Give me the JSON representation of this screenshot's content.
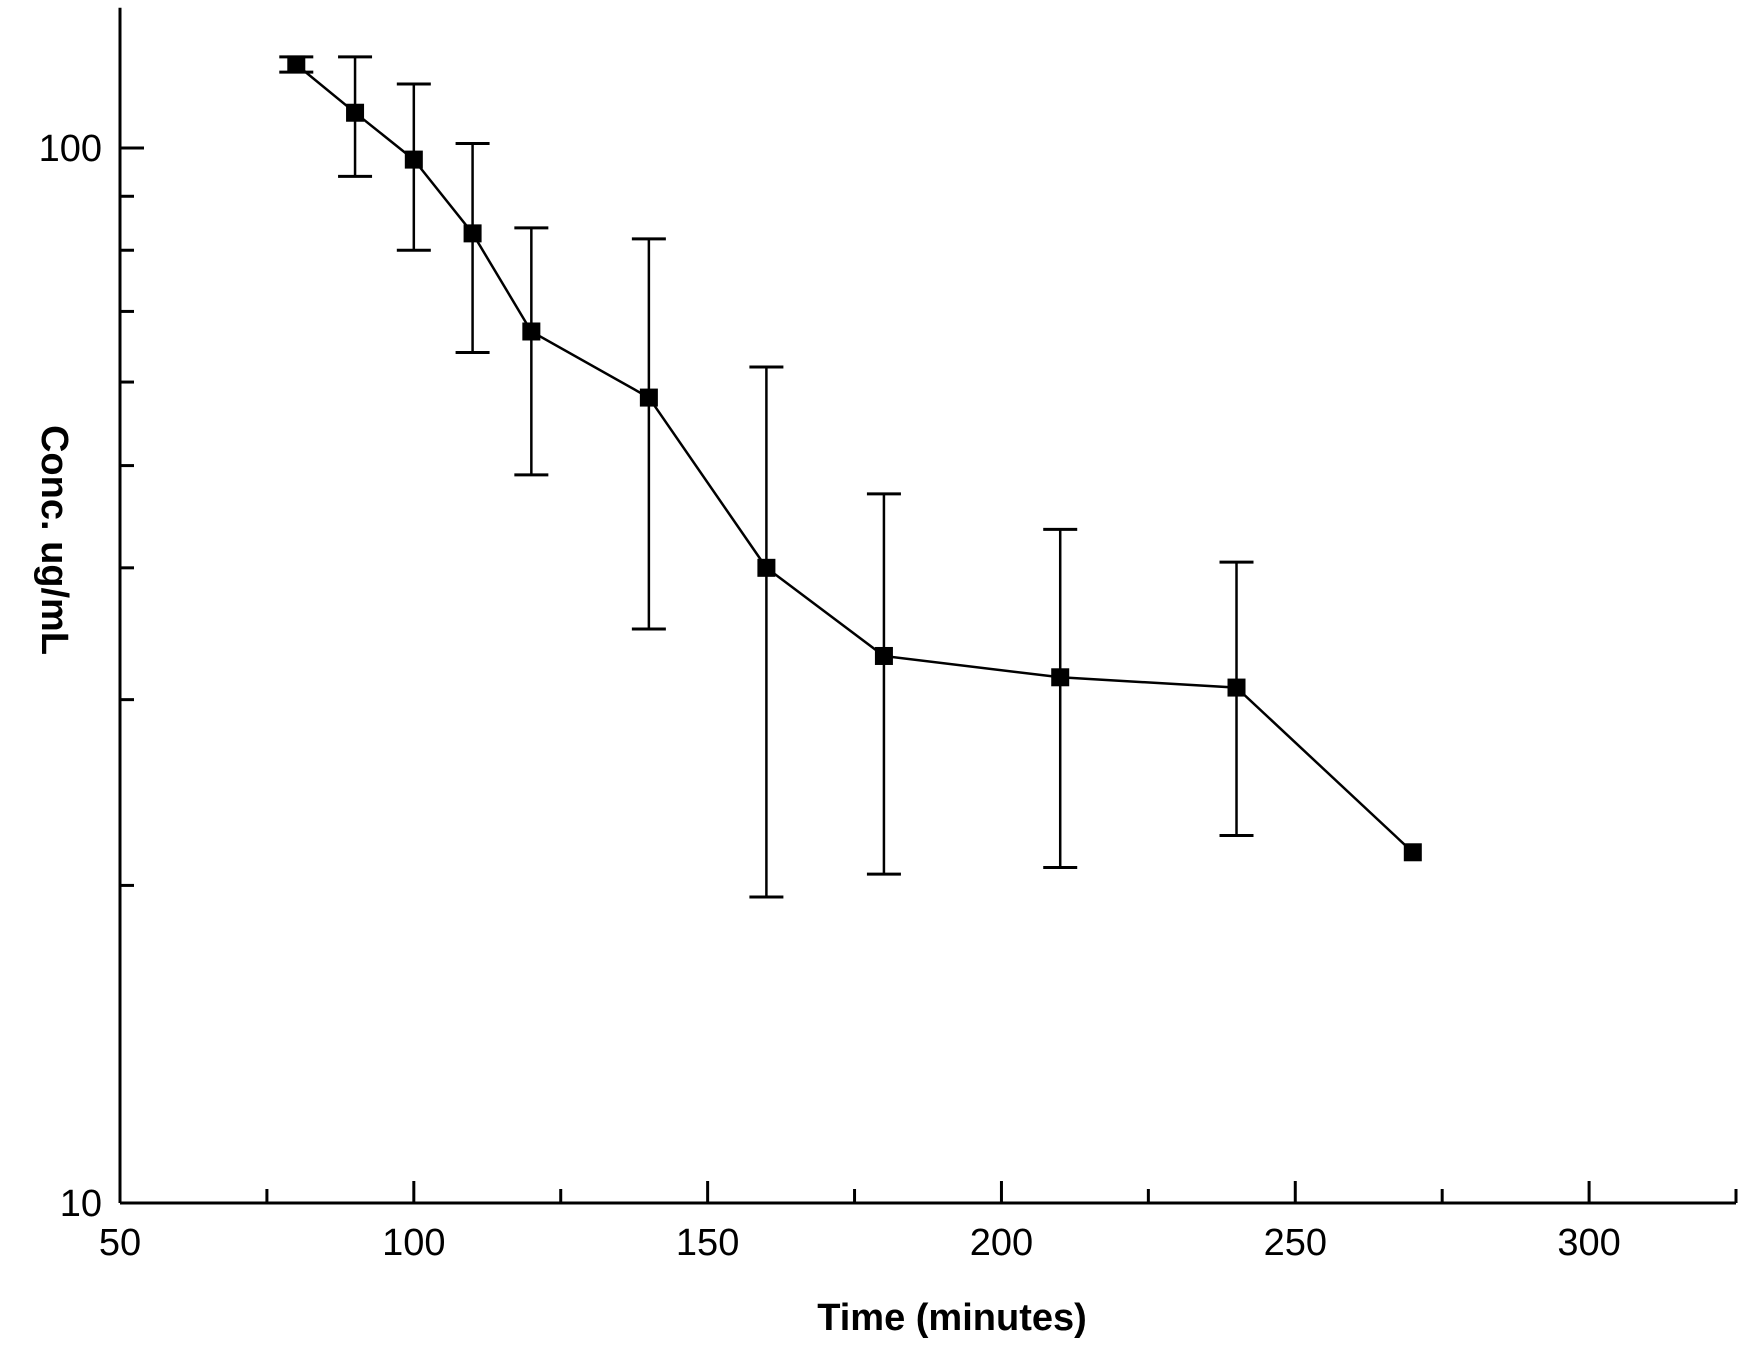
{
  "chart_data": {
    "type": "line",
    "title": "",
    "xlabel": "Time (minutes)",
    "ylabel": "Conc. ug/mL",
    "xlim": [
      50,
      325
    ],
    "ylim": [
      10,
      130
    ],
    "yscale": "log",
    "grid": false,
    "x_tick_labels": [
      "50",
      "100",
      "150",
      "200",
      "250",
      "300"
    ],
    "x_tick_values": [
      50,
      100,
      150,
      200,
      250,
      300
    ],
    "x_minor_ticks": [
      75,
      125,
      175,
      225,
      275,
      325
    ],
    "y_tick_labels": [
      "10",
      "100"
    ],
    "y_tick_values": [
      10,
      100
    ],
    "series": [
      {
        "x": [
          80,
          90,
          100,
          110,
          120,
          140,
          160,
          180,
          210,
          240,
          270
        ],
        "y": [
          120,
          108,
          97.5,
          83,
          67,
          58,
          40,
          33,
          31.5,
          30.8,
          21.5
        ],
        "y_upper": [
          122,
          122,
          115,
          101,
          84,
          82,
          62,
          47,
          43.5,
          40.5,
          21.5
        ],
        "y_lower": [
          118,
          94,
          80,
          64,
          49,
          35,
          19.5,
          20.5,
          20.8,
          22.3,
          21.5
        ]
      }
    ]
  }
}
